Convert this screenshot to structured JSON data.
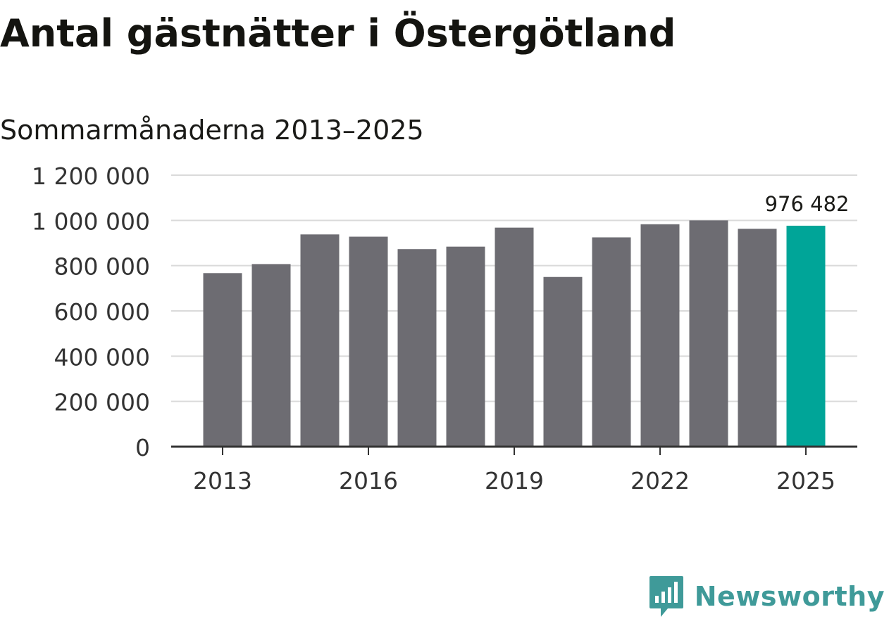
{
  "header": {
    "title": "Antal gästnätter i Östergötland",
    "subtitle": "Sommarmånaderna 2013–2025"
  },
  "chart_data": {
    "type": "bar",
    "title": "Antal gästnätter i Östergötland",
    "subtitle": "Sommarmånaderna 2013–2025",
    "xlabel": "",
    "ylabel": "",
    "categories": [
      "2013",
      "2014",
      "2015",
      "2016",
      "2017",
      "2018",
      "2019",
      "2020",
      "2021",
      "2022",
      "2023",
      "2024",
      "2025"
    ],
    "values": [
      767000,
      807000,
      938000,
      928000,
      873000,
      884000,
      968000,
      750000,
      925000,
      983000,
      1000000,
      963000,
      976482
    ],
    "x_tick_labels": [
      "2013",
      "2016",
      "2019",
      "2022",
      "2025"
    ],
    "y_tick_labels": [
      "0",
      "200 000",
      "400 000",
      "600 000",
      "800 000",
      "1 000 000",
      "1 200 000"
    ],
    "ylim": [
      0,
      1200000
    ],
    "grid": true,
    "legend": "none",
    "annotation": {
      "category": "2025",
      "text": "976 482"
    },
    "colors": {
      "bar": "#6d6c72",
      "highlight": "#00a598",
      "grid": "#dadada",
      "axis": "#333333",
      "tick_text": "#333333"
    }
  },
  "brand": {
    "name": "Newsworthy",
    "icon": "newsworthy-logo-icon",
    "color": "#3f9a99"
  }
}
